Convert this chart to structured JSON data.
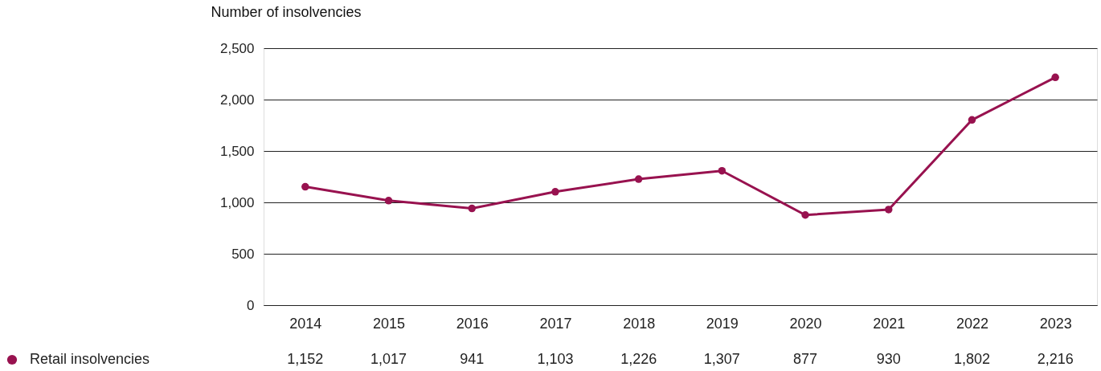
{
  "chart_data": {
    "type": "line",
    "ylabel": "Number of insolvencies",
    "categories": [
      "2014",
      "2015",
      "2016",
      "2017",
      "2018",
      "2019",
      "2020",
      "2021",
      "2022",
      "2023"
    ],
    "series": [
      {
        "name": "Retail insolvencies",
        "color": "#98124f",
        "values": [
          1152,
          1017,
          941,
          1103,
          1226,
          1307,
          877,
          930,
          1802,
          2216
        ],
        "value_labels": [
          "1,152",
          "1,017",
          "941",
          "1,103",
          "1,226",
          "1,307",
          "877",
          "930",
          "1,802",
          "2,216"
        ]
      }
    ],
    "ylim": [
      0,
      2500
    ],
    "yticks": [
      0,
      {
        "value": 500,
        "label": "500"
      },
      {
        "value": 1000,
        "label": "1,000"
      },
      {
        "value": 1500,
        "label": "1,500"
      },
      {
        "value": 2000,
        "label": "2,000"
      },
      {
        "value": 2500,
        "label": "2,500"
      }
    ],
    "grid": "y",
    "marker": "circle",
    "line_style": "solid",
    "legend": "bottom left"
  }
}
